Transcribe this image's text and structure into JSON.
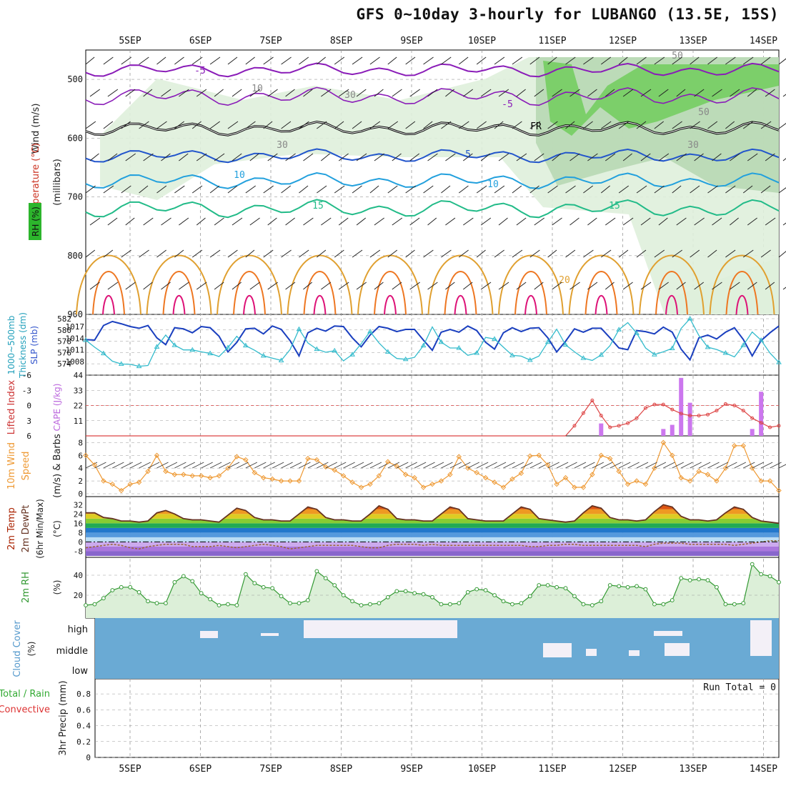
{
  "title": "GFS 0~10day 3-hourly for LUBANGO (13.5E, 15S)",
  "dates": [
    "5SEP",
    "6SEP",
    "7SEP",
    "8SEP",
    "9SEP",
    "10SEP",
    "11SEP",
    "12SEP",
    "13SEP",
    "14SEP"
  ],
  "colors": {
    "grid": "#999999",
    "rh_green": "#7ccf6a",
    "rh_light": "#dff0dc",
    "cloud": "#6aaad4",
    "thickness": "#1a3fbf",
    "slp": "#33bbcc",
    "cape": "#cc77ee",
    "lifted": "#dd4444",
    "wind10": "#ee9933",
    "rh2m_line": "#339933",
    "dewpt": "#996633"
  },
  "panels": {
    "upper": {
      "label_wind": "Wind (m/s)",
      "label_temp": "Temperature (°C)",
      "label_rh": "RH (%)",
      "label_mb": "(millibars)",
      "ticks": [
        "500",
        "600",
        "700",
        "800",
        "900"
      ],
      "contour_labels": [
        "-5",
        "-5",
        "FR",
        "5",
        "10",
        "10",
        "15",
        "15",
        "20",
        "10",
        "30",
        "30",
        "50",
        "50",
        "30"
      ]
    },
    "thickness": {
      "label_a": "1000~500mb",
      "label_b": "Thickness (dm)",
      "label_c": "SLP (mb)",
      "thick_ticks": [
        "582",
        "580",
        "578",
        "576",
        "574"
      ],
      "slp_ticks": [
        "1017",
        "1014",
        "1011",
        "1008"
      ]
    },
    "cape": {
      "label_a": "Lifted Index",
      "label_b": "CAPE (J/kg)",
      "li_ticks": [
        "-6",
        "-3",
        "0",
        "3",
        "6"
      ],
      "cape_ticks": [
        "44",
        "33",
        "22",
        "11"
      ]
    },
    "wind10": {
      "label_a": "10m Wind",
      "label_b": "Speed",
      "label_c": "(m/s) & Barbs",
      "ticks": [
        "8",
        "6",
        "4",
        "2",
        "0"
      ]
    },
    "temp2m": {
      "label_a": "2m Temp",
      "label_b": "2m DewPt",
      "label_c": "(6hr Min/Max)",
      "label_d": "(°C)",
      "ticks": [
        "32",
        "24",
        "16",
        "8",
        "0",
        "-8"
      ]
    },
    "rh2m": {
      "label_a": "2m RH",
      "label_b": "(%)",
      "ticks": [
        "40",
        "20"
      ]
    },
    "cloud": {
      "label_a": "Cloud Cover",
      "label_b": "(%)",
      "levels": [
        "high",
        "middle",
        "low"
      ]
    },
    "precip": {
      "label_a": "Total / Rain",
      "label_b": "Convective",
      "label_c": "3hr Precip (mm)",
      "ticks": [
        "0.8",
        "0.6",
        "0.4",
        "0.2",
        "0"
      ],
      "run_total": "Run Total = 0"
    }
  },
  "chart_data": [
    {
      "type": "line",
      "name_axis": "1000~500mb Thickness (dm)",
      "x_unit": "3-hourly steps from 4SEP 12Z",
      "series": [
        {
          "name": "Thickness",
          "values": [
            578.3,
            578.2,
            580.8,
            581.5,
            581.1,
            580.6,
            580.3,
            580.8,
            578.6,
            577.4,
            580.4,
            580.2,
            579.5,
            580.6,
            580.4,
            578.9,
            576.1,
            577.8,
            580.2,
            580.3,
            579.3,
            580.7,
            580.1,
            578.1,
            575.4,
            579.5,
            580.3,
            579.8,
            580.7,
            580.6,
            578.6,
            577.0,
            579.1,
            580.6,
            580.3,
            579.7,
            580.1,
            580.1,
            578.2,
            576.4,
            579.6,
            580.1,
            579.6,
            580.7,
            579.9,
            577.8,
            576.6,
            579.5,
            580.4,
            579.7,
            580.3,
            580.4,
            578.6,
            576.1,
            578.0,
            580.2,
            579.6,
            580.3,
            580.3,
            578.6,
            576.8,
            576.5,
            579.9,
            579.7,
            579.3,
            580.5,
            579.6,
            576.6,
            574.7,
            578.6,
            579.1,
            578.4,
            579.6,
            580.4,
            578.3,
            575.4,
            578.1,
            579.5,
            580.7
          ]
        }
      ]
    },
    {
      "type": "line",
      "name_axis": "SLP (mb)",
      "series": [
        {
          "name": "SLP",
          "values": [
            1013.5,
            1011.7,
            1010.1,
            1008.1,
            1007.4,
            1007.3,
            1006.8,
            1007.0,
            1011.8,
            1014.8,
            1012.2,
            1011.0,
            1011.0,
            1010.5,
            1010.1,
            1009.3,
            1011.6,
            1014.5,
            1012.1,
            1010.9,
            1009.5,
            1008.9,
            1008.3,
            1011.1,
            1016.3,
            1012.8,
            1011.2,
            1010.4,
            1010.8,
            1008.2,
            1009.8,
            1012.6,
            1015.7,
            1012.8,
            1010.5,
            1008.8,
            1008.6,
            1009.1,
            1012.1,
            1016.9,
            1013.0,
            1011.5,
            1011.5,
            1009.6,
            1010.2,
            1014.2,
            1013.8,
            1011.7,
            1009.6,
            1009.4,
            1008.4,
            1009.4,
            1013.0,
            1016.3,
            1012.3,
            1010.5,
            1008.9,
            1008.3,
            1009.7,
            1012.1,
            1016.2,
            1018.0,
            1015.3,
            1011.5,
            1009.8,
            1010.5,
            1011.4,
            1016.5,
            1019.0,
            1014.7,
            1011.7,
            1011.1,
            1010.2,
            1009.2,
            1012.2,
            1015.6,
            1013.5,
            1010.2,
            1007.8
          ]
        }
      ]
    },
    {
      "type": "bar",
      "name_axis": "CAPE (J/kg)",
      "series": [
        {
          "name": "CAPE",
          "values": [
            0,
            0,
            0,
            0,
            0,
            0,
            0,
            0,
            0,
            0,
            0,
            0,
            0,
            0,
            0,
            0,
            0,
            0,
            0,
            0,
            0,
            0,
            0,
            0,
            0,
            0,
            0,
            0,
            0,
            0,
            0,
            0,
            0,
            0,
            0,
            0,
            0,
            0,
            0,
            0,
            0,
            0,
            0,
            0,
            0,
            0,
            0,
            0,
            0,
            0,
            0,
            0,
            0,
            0,
            0,
            0,
            0,
            0,
            9,
            0,
            0,
            0,
            0,
            0,
            0,
            5,
            8,
            42,
            24,
            0,
            0,
            0,
            0,
            0,
            0,
            5,
            32,
            0,
            0
          ]
        }
      ]
    },
    {
      "type": "line",
      "name_axis": "Lifted Index",
      "series": [
        {
          "name": "Lifted Index",
          "values": [
            6.5,
            6.5,
            6.5,
            6.5,
            6.5,
            6.5,
            6.5,
            6.5,
            6.5,
            6.5,
            6.5,
            6.5,
            6.5,
            6.5,
            6.5,
            6.5,
            6.5,
            6.5,
            6.5,
            6.5,
            6.5,
            6.5,
            6.5,
            6.5,
            6.5,
            6.5,
            6.5,
            6.5,
            6.5,
            6.5,
            6.5,
            6.5,
            6.5,
            6.5,
            6.5,
            6.5,
            6.5,
            6.5,
            6.5,
            6.5,
            6.5,
            6.5,
            6.5,
            6.5,
            6.5,
            6.5,
            6.5,
            6.5,
            6.5,
            6.5,
            6.5,
            6.5,
            6.5,
            6.5,
            6.0,
            4.0,
            1.5,
            -1.0,
            2.0,
            4.3,
            4.0,
            3.5,
            2.5,
            0.5,
            -0.2,
            -0.2,
            0.8,
            1.6,
            2.0,
            2.0,
            1.8,
            1.0,
            -0.3,
            0.0,
            1.0,
            2.5,
            3.4,
            4.3,
            4.0
          ]
        }
      ]
    },
    {
      "type": "line",
      "name_axis": "10m Wind Speed (m/s)",
      "series": [
        {
          "name": "10m Wind Speed",
          "values": [
            6.0,
            4.5,
            2.0,
            1.5,
            0.5,
            1.5,
            1.8,
            3.5,
            6.0,
            3.5,
            3.0,
            3.0,
            2.8,
            2.8,
            2.5,
            2.8,
            4.0,
            5.8,
            5.3,
            3.3,
            2.5,
            2.3,
            2.0,
            2.0,
            2.0,
            5.5,
            5.3,
            4.2,
            3.7,
            2.8,
            1.8,
            1.0,
            1.5,
            2.8,
            5.0,
            4.3,
            3.0,
            2.5,
            1.0,
            1.5,
            2.0,
            3.0,
            5.8,
            4.0,
            3.3,
            2.5,
            1.8,
            1.0,
            2.3,
            3.2,
            5.9,
            6.0,
            4.5,
            1.5,
            2.5,
            1.0,
            1.0,
            3.0,
            6.0,
            5.5,
            3.5,
            1.5,
            2.0,
            1.5,
            4.0,
            8.0,
            6.0,
            2.5,
            2.0,
            3.5,
            3.0,
            2.0,
            4.0,
            7.5,
            7.5,
            4.0,
            2.0,
            2.0,
            0.5
          ]
        }
      ]
    },
    {
      "type": "line",
      "name_axis": "2m Temp (°C)",
      "series": [
        {
          "name": "2m Temp",
          "values": [
            25,
            25,
            21,
            20,
            18,
            18,
            17,
            18,
            25,
            27,
            24,
            20,
            19,
            19,
            18,
            17,
            23,
            29,
            27,
            21,
            19,
            19,
            18,
            18,
            24,
            30,
            28,
            21,
            19,
            19,
            18,
            18,
            24,
            31,
            28,
            20,
            19,
            19,
            18,
            18,
            24,
            30,
            28,
            20,
            19,
            18,
            18,
            18,
            24,
            30,
            28,
            20,
            19,
            18,
            17,
            18,
            25,
            31,
            29,
            21,
            19,
            19,
            18,
            19,
            26,
            32,
            30,
            22,
            19,
            19,
            18,
            19,
            25,
            30,
            28,
            21,
            18,
            17,
            16
          ]
        },
        {
          "name": "2m DewPt",
          "values": [
            -5,
            -4,
            -3,
            -2,
            -3,
            -5,
            -6,
            -4,
            -3,
            -2,
            -2,
            -2,
            -4,
            -4,
            -4,
            -3,
            -4,
            -5,
            -4,
            -3,
            -2,
            -3,
            -4,
            -6,
            -5,
            -4,
            -3,
            -3,
            -3,
            -3,
            -3,
            -4,
            -5,
            -5,
            -3,
            -2,
            -2,
            -2,
            -3,
            -2,
            -3,
            -3,
            -3,
            -3,
            -3,
            -3,
            -3,
            -3,
            -3,
            -3,
            -4,
            -4,
            -3,
            -3,
            -2,
            -2,
            -3,
            -3,
            -3,
            -3,
            -3,
            -3,
            -3,
            -4,
            -2,
            -1,
            -1,
            -1,
            -2,
            -2,
            -2,
            -2,
            -2,
            -3,
            -2,
            -1,
            0,
            1,
            1
          ]
        }
      ]
    },
    {
      "type": "area",
      "name_axis": "2m RH (%)",
      "series": [
        {
          "name": "2m RH",
          "values": [
            10,
            11,
            17,
            25,
            28,
            28,
            23,
            14,
            12,
            12,
            33,
            39,
            34,
            22,
            16,
            10,
            11,
            10,
            41,
            32,
            28,
            27,
            19,
            12,
            12,
            15,
            44,
            37,
            30,
            20,
            14,
            10,
            11,
            12,
            18,
            24,
            24,
            22,
            21,
            18,
            11,
            11,
            12,
            23,
            26,
            25,
            20,
            14,
            11,
            12,
            19,
            30,
            30,
            28,
            27,
            19,
            11,
            10,
            14,
            30,
            29,
            28,
            29,
            26,
            11,
            11,
            15,
            37,
            35,
            36,
            35,
            28,
            11,
            11,
            12,
            51,
            41,
            39,
            33
          ]
        }
      ]
    },
    {
      "type": "table",
      "name_axis": "3hr Precip (mm)",
      "rows": [
        [
          "Run Total",
          "0"
        ]
      ]
    }
  ]
}
